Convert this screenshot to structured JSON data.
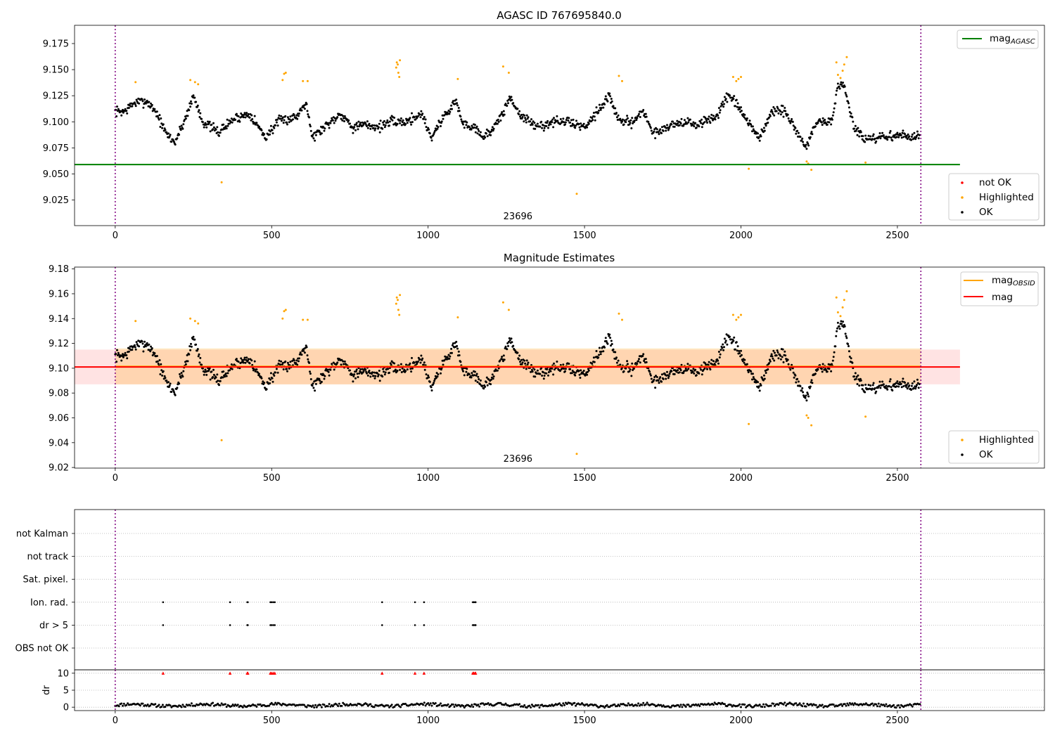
{
  "chart_data": [
    {
      "type": "scatter",
      "title": "AGASC ID 767695840.0",
      "xlim": [
        -130,
        2970
      ],
      "ylim": [
        9.0005,
        9.1925
      ],
      "xticks": [
        0,
        500,
        1000,
        1500,
        2000,
        2500
      ],
      "yticks": [
        9.025,
        9.05,
        9.075,
        9.1,
        9.125,
        9.15,
        9.175
      ],
      "yticklabels": [
        "9.025",
        "9.050",
        "9.075",
        "9.100",
        "9.125",
        "9.150",
        "9.175"
      ],
      "obsid_label": "23696",
      "obsid_boundaries": [
        0,
        2575
      ],
      "lines": [
        {
          "name": "mag_AGASC",
          "legend_text": "mag",
          "legend_sub": "AGASC",
          "y": 9.059,
          "x0": -130,
          "x1": 2700,
          "color": "#008000"
        }
      ],
      "series": [
        {
          "name": "not OK",
          "color": "#ff0000",
          "points": []
        },
        {
          "name": "Highlighted",
          "color": "#ffa500",
          "points": [
            [
              65,
              9.138
            ],
            [
              240,
              9.14
            ],
            [
              255,
              9.138
            ],
            [
              265,
              9.136
            ],
            [
              340,
              9.042
            ],
            [
              535,
              9.14
            ],
            [
              540,
              9.146
            ],
            [
              545,
              9.147
            ],
            [
              600,
              9.139
            ],
            [
              615,
              9.139
            ],
            [
              898,
              9.152
            ],
            [
              900,
              9.157
            ],
            [
              903,
              9.155
            ],
            [
              905,
              9.147
            ],
            [
              908,
              9.143
            ],
            [
              910,
              9.159
            ],
            [
              1095,
              9.141
            ],
            [
              1240,
              9.153
            ],
            [
              1258,
              9.147
            ],
            [
              1475,
              9.031
            ],
            [
              1610,
              9.144
            ],
            [
              1620,
              9.139
            ],
            [
              1975,
              9.143
            ],
            [
              1985,
              9.139
            ],
            [
              1992,
              9.141
            ],
            [
              2000,
              9.143
            ],
            [
              2025,
              9.055
            ],
            [
              2210,
              9.062
            ],
            [
              2215,
              9.06
            ],
            [
              2225,
              9.054
            ],
            [
              2305,
              9.157
            ],
            [
              2310,
              9.145
            ],
            [
              2318,
              9.142
            ],
            [
              2325,
              9.149
            ],
            [
              2330,
              9.155
            ],
            [
              2338,
              9.162
            ],
            [
              2398,
              9.061
            ]
          ]
        },
        {
          "name": "OK",
          "color": "#000000",
          "anchors": [
            [
              0,
              9.11
            ],
            [
              30,
              9.11
            ],
            [
              60,
              9.118
            ],
            [
              100,
              9.12
            ],
            [
              130,
              9.11
            ],
            [
              160,
              9.09
            ],
            [
              190,
              9.08
            ],
            [
              220,
              9.1
            ],
            [
              250,
              9.125
            ],
            [
              280,
              9.1
            ],
            [
              330,
              9.09
            ],
            [
              380,
              9.103
            ],
            [
              430,
              9.108
            ],
            [
              480,
              9.085
            ],
            [
              520,
              9.1
            ],
            [
              580,
              9.105
            ],
            [
              610,
              9.12
            ],
            [
              630,
              9.085
            ],
            [
              680,
              9.098
            ],
            [
              720,
              9.108
            ],
            [
              760,
              9.095
            ],
            [
              800,
              9.097
            ],
            [
              840,
              9.095
            ],
            [
              880,
              9.1
            ],
            [
              930,
              9.1
            ],
            [
              980,
              9.108
            ],
            [
              1010,
              9.085
            ],
            [
              1050,
              9.105
            ],
            [
              1090,
              9.12
            ],
            [
              1110,
              9.098
            ],
            [
              1150,
              9.095
            ],
            [
              1180,
              9.085
            ],
            [
              1230,
              9.102
            ],
            [
              1260,
              9.123
            ],
            [
              1300,
              9.105
            ],
            [
              1350,
              9.095
            ],
            [
              1400,
              9.1
            ],
            [
              1450,
              9.1
            ],
            [
              1500,
              9.095
            ],
            [
              1540,
              9.11
            ],
            [
              1580,
              9.125
            ],
            [
              1610,
              9.1
            ],
            [
              1650,
              9.1
            ],
            [
              1690,
              9.11
            ],
            [
              1720,
              9.088
            ],
            [
              1760,
              9.095
            ],
            [
              1810,
              9.1
            ],
            [
              1860,
              9.097
            ],
            [
              1920,
              9.105
            ],
            [
              1960,
              9.125
            ],
            [
              1990,
              9.115
            ],
            [
              2020,
              9.1
            ],
            [
              2060,
              9.085
            ],
            [
              2100,
              9.11
            ],
            [
              2140,
              9.11
            ],
            [
              2180,
              9.09
            ],
            [
              2210,
              9.075
            ],
            [
              2240,
              9.1
            ],
            [
              2290,
              9.1
            ],
            [
              2310,
              9.135
            ],
            [
              2330,
              9.135
            ],
            [
              2360,
              9.095
            ],
            [
              2400,
              9.082
            ],
            [
              2450,
              9.085
            ],
            [
              2500,
              9.087
            ],
            [
              2570,
              9.085
            ]
          ],
          "spread": 0.007,
          "step": 2
        }
      ]
    },
    {
      "type": "scatter",
      "title": "Magnitude Estimates",
      "xlim": [
        -130,
        2970
      ],
      "ylim": [
        9.0195,
        9.1815
      ],
      "xticks": [
        0,
        500,
        1000,
        1500,
        2000,
        2500
      ],
      "yticks": [
        9.02,
        9.04,
        9.06,
        9.08,
        9.1,
        9.12,
        9.14,
        9.16,
        9.18
      ],
      "yticklabels": [
        "9.02",
        "9.04",
        "9.06",
        "9.08",
        "9.10",
        "9.12",
        "9.14",
        "9.16",
        "9.18"
      ],
      "obsid_label": "23696",
      "obsid_boundaries": [
        0,
        2575
      ],
      "lines": [
        {
          "name": "mag_OBSID",
          "legend_text": "mag",
          "legend_sub": "OBSID",
          "y": 9.1015,
          "x0": 0,
          "x1": 2575,
          "color": "#ffa500",
          "band": [
            9.087,
            9.116
          ],
          "band_color": "#ffa500"
        },
        {
          "name": "mag",
          "legend_text": "mag",
          "legend_sub": "",
          "y": 9.101,
          "x0": -130,
          "x1": 2700,
          "color": "#ff0000",
          "band": [
            9.087,
            9.115
          ],
          "band_color": "#ff8080"
        }
      ],
      "series": [
        {
          "name": "Highlighted",
          "color": "#ffa500",
          "ref": 0
        },
        {
          "name": "OK",
          "color": "#000000",
          "ref": 0
        }
      ]
    },
    {
      "type": "scatter",
      "title": "",
      "xlim": [
        -130,
        2970
      ],
      "xticks": [
        0,
        500,
        1000,
        1500,
        2000,
        2500
      ],
      "obsid_boundaries": [
        0,
        2575
      ],
      "flag_rows": [
        "not Kalman",
        "not track",
        "Sat. pixel.",
        "Ion. rad.",
        "dr > 5",
        "OBS not OK"
      ],
      "flag_points": {
        "Ion. rad.": [
          153,
          367,
          422,
          424,
          496,
          500,
          505,
          510,
          853,
          958,
          987,
          1143,
          1146,
          1150,
          1152
        ],
        "dr > 5": [
          153,
          367,
          422,
          424,
          496,
          500,
          505,
          510,
          853,
          958,
          987,
          1143,
          1146,
          1150,
          1152
        ]
      },
      "dr": {
        "ylabel": "dr",
        "ylim": [
          -1,
          11
        ],
        "yticks": [
          0,
          5,
          10
        ],
        "yticklabels": [
          "0",
          "5",
          "10"
        ],
        "level": 0.6,
        "clipped_markers_y": 10,
        "clipped_markers_x": [
          153,
          367,
          422,
          424,
          496,
          500,
          505,
          510,
          853,
          958,
          987,
          1143,
          1146,
          1150,
          1152
        ],
        "marker_color": "#ff0000"
      }
    }
  ]
}
